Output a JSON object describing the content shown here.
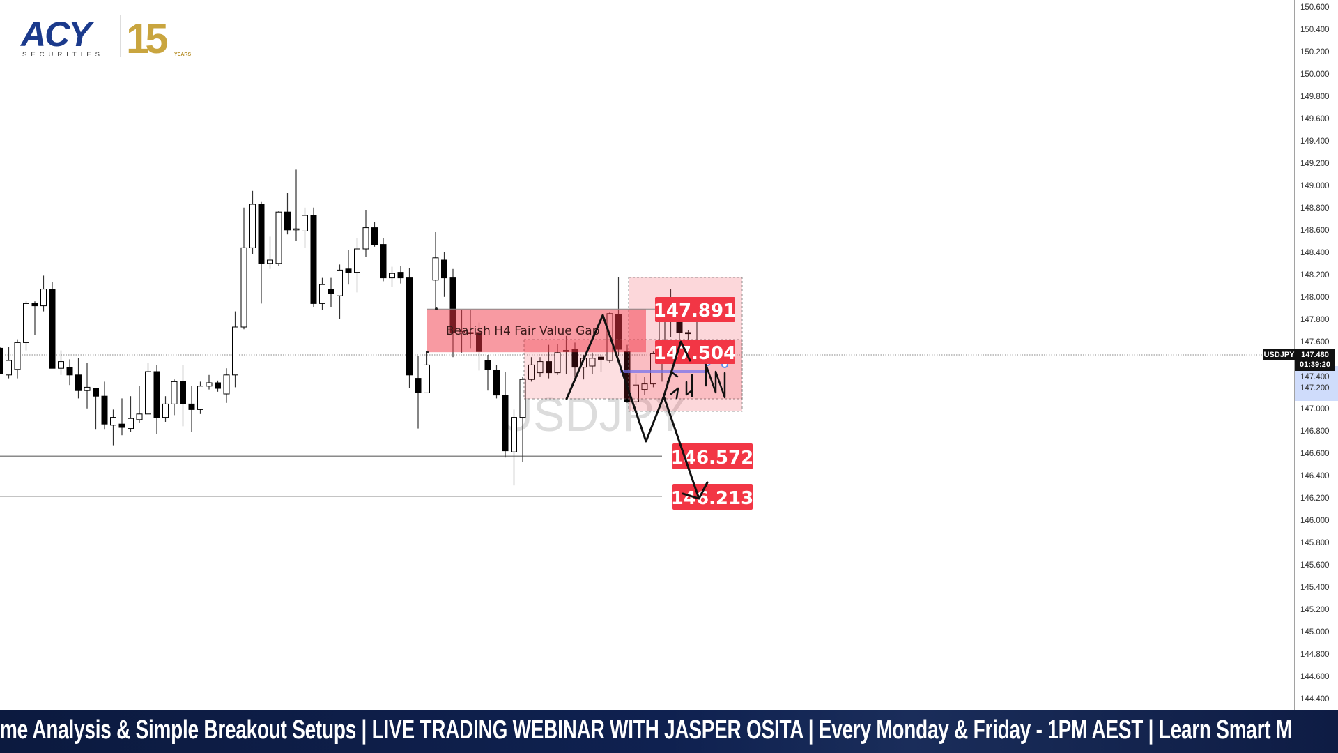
{
  "logo": {
    "brand": "ACY",
    "sub": "SECURITIES",
    "anniversary": "15",
    "anniversary_sub": "YEARS",
    "brand_color": "#1b3a8c",
    "gold_color": "#c9a53f"
  },
  "ticker": {
    "text": "me Analysis & Simple Breakout Setups | LIVE TRADING WEBINAR WITH JASPER OSITA | Every Monday & Friday - 1PM AEST | Learn Smart M"
  },
  "chart_data": {
    "type": "candlestick",
    "symbol": "USDJPY",
    "watermark": "USDJPY",
    "current_price": "147.480",
    "countdown": "01:39:20",
    "ylim": [
      144.3,
      150.66
    ],
    "grid": false,
    "price_axis": {
      "ticks": [
        "150.600",
        "150.400",
        "150.200",
        "150.000",
        "149.800",
        "149.600",
        "149.400",
        "149.200",
        "149.000",
        "148.800",
        "148.600",
        "148.400",
        "148.200",
        "148.000",
        "147.800",
        "147.600",
        "147.400",
        "147.200",
        "147.000",
        "146.800",
        "146.600",
        "146.400",
        "146.200",
        "146.000",
        "145.800",
        "145.600",
        "145.400",
        "145.200",
        "145.000",
        "144.800",
        "144.600",
        "144.400"
      ]
    },
    "candles_ohlc": [
      [
        147.54,
        147.55,
        147.31,
        147.31
      ],
      [
        147.3,
        147.55,
        147.27,
        147.43
      ],
      [
        147.35,
        147.62,
        147.27,
        147.59
      ],
      [
        147.59,
        147.96,
        147.52,
        147.94
      ],
      [
        147.94,
        147.96,
        147.66,
        147.92
      ],
      [
        147.92,
        148.19,
        147.87,
        148.07
      ],
      [
        148.07,
        148.13,
        147.36,
        147.36
      ],
      [
        147.36,
        147.52,
        147.3,
        147.42
      ],
      [
        147.37,
        147.44,
        147.21,
        147.3
      ],
      [
        147.3,
        147.45,
        147.09,
        147.16
      ],
      [
        147.16,
        147.41,
        147.0,
        147.19
      ],
      [
        147.18,
        147.18,
        146.81,
        147.11
      ],
      [
        147.11,
        147.24,
        146.81,
        146.86
      ],
      [
        146.85,
        146.99,
        146.67,
        146.92
      ],
      [
        146.86,
        147.09,
        146.76,
        146.83
      ],
      [
        146.82,
        147.11,
        146.79,
        146.91
      ],
      [
        146.9,
        147.2,
        146.87,
        146.95
      ],
      [
        146.95,
        147.41,
        146.95,
        147.33
      ],
      [
        147.33,
        147.39,
        146.77,
        146.92
      ],
      [
        146.92,
        147.11,
        146.88,
        147.04
      ],
      [
        147.04,
        147.26,
        146.94,
        147.24
      ],
      [
        147.24,
        147.39,
        146.84,
        147.04
      ],
      [
        147.04,
        147.2,
        146.79,
        146.99
      ],
      [
        146.99,
        147.24,
        146.95,
        147.2
      ],
      [
        147.2,
        147.3,
        147.17,
        147.23
      ],
      [
        147.23,
        147.25,
        147.15,
        147.18
      ],
      [
        147.13,
        147.36,
        147.05,
        147.3
      ],
      [
        147.3,
        147.87,
        147.19,
        147.73
      ],
      [
        147.73,
        148.8,
        147.71,
        148.44
      ],
      [
        148.44,
        148.95,
        148.38,
        148.83
      ],
      [
        148.83,
        148.85,
        147.94,
        148.3
      ],
      [
        148.3,
        148.54,
        148.25,
        148.33
      ],
      [
        148.3,
        148.77,
        148.28,
        148.76
      ],
      [
        148.76,
        148.93,
        148.56,
        148.6
      ],
      [
        148.6,
        149.14,
        148.5,
        148.61
      ],
      [
        148.59,
        148.8,
        148.44,
        148.73
      ],
      [
        148.73,
        148.8,
        147.91,
        147.94
      ],
      [
        147.94,
        148.17,
        147.88,
        148.11
      ],
      [
        148.07,
        148.17,
        147.91,
        148.03
      ],
      [
        148.01,
        148.29,
        147.8,
        148.24
      ],
      [
        148.25,
        148.42,
        148.11,
        148.22
      ],
      [
        148.22,
        148.53,
        148.04,
        148.43
      ],
      [
        148.43,
        148.78,
        148.36,
        148.62
      ],
      [
        148.62,
        148.67,
        148.45,
        148.47
      ],
      [
        148.47,
        148.53,
        148.14,
        148.17
      ],
      [
        148.17,
        148.27,
        148.09,
        148.21
      ],
      [
        148.22,
        148.28,
        148.12,
        148.17
      ],
      [
        148.17,
        148.26,
        147.18,
        147.3
      ],
      [
        147.27,
        147.47,
        146.82,
        147.14
      ],
      [
        147.14,
        147.51,
        147.14,
        147.39
      ],
      [
        148.15,
        148.58,
        147.89,
        148.35
      ],
      [
        148.33,
        148.4,
        148.0,
        148.17
      ],
      [
        148.17,
        148.25,
        147.46,
        147.68
      ],
      [
        147.68,
        147.88,
        147.5,
        147.69
      ],
      [
        147.68,
        147.88,
        147.54,
        147.68
      ],
      [
        147.68,
        147.77,
        147.34,
        147.51
      ],
      [
        147.43,
        147.48,
        147.16,
        147.35
      ],
      [
        147.34,
        147.39,
        147.09,
        147.12
      ],
      [
        147.12,
        147.33,
        146.56,
        146.62
      ],
      [
        146.61,
        146.99,
        146.31,
        146.92
      ],
      [
        146.92,
        147.28,
        146.52,
        147.26
      ],
      [
        147.26,
        147.46,
        147.24,
        147.39
      ],
      [
        147.32,
        147.46,
        147.28,
        147.42
      ],
      [
        147.42,
        147.57,
        147.27,
        147.32
      ],
      [
        147.32,
        147.58,
        147.3,
        147.5
      ],
      [
        147.52,
        147.65,
        147.31,
        147.51
      ],
      [
        147.53,
        147.59,
        147.28,
        147.37
      ],
      [
        147.37,
        147.48,
        147.26,
        147.45
      ],
      [
        147.38,
        147.5,
        147.31,
        147.45
      ],
      [
        147.46,
        147.48,
        147.33,
        147.44
      ],
      [
        147.43,
        147.86,
        147.41,
        147.85
      ],
      [
        147.84,
        148.18,
        147.47,
        147.53
      ],
      [
        147.51,
        147.57,
        147.05,
        147.06
      ],
      [
        147.06,
        147.31,
        147.03,
        147.21
      ],
      [
        147.17,
        147.28,
        147.12,
        147.22
      ],
      [
        147.22,
        147.51,
        147.19,
        147.49
      ],
      [
        147.49,
        147.91,
        147.24,
        147.89
      ],
      [
        147.89,
        148.07,
        147.64,
        147.85
      ],
      [
        147.85,
        147.86,
        147.5,
        147.68
      ],
      [
        147.68,
        147.7,
        147.4,
        147.67
      ],
      [
        147.56,
        147.78,
        147.49,
        147.55
      ],
      [
        147.55,
        147.6,
        147.45,
        147.47
      ]
    ],
    "annotations": {
      "fvg": {
        "label": "Bearish H4 Fair Value Gap",
        "top": 147.891,
        "bottom": 147.504,
        "color": "#f23645"
      },
      "levels": [
        {
          "label": "147.891",
          "price": 147.891
        },
        {
          "label": "147.504",
          "price": 147.504
        },
        {
          "label": "146.572",
          "price": 146.572
        },
        {
          "label": "146.213",
          "price": 146.213
        }
      ],
      "label_color": "#f23645"
    }
  }
}
